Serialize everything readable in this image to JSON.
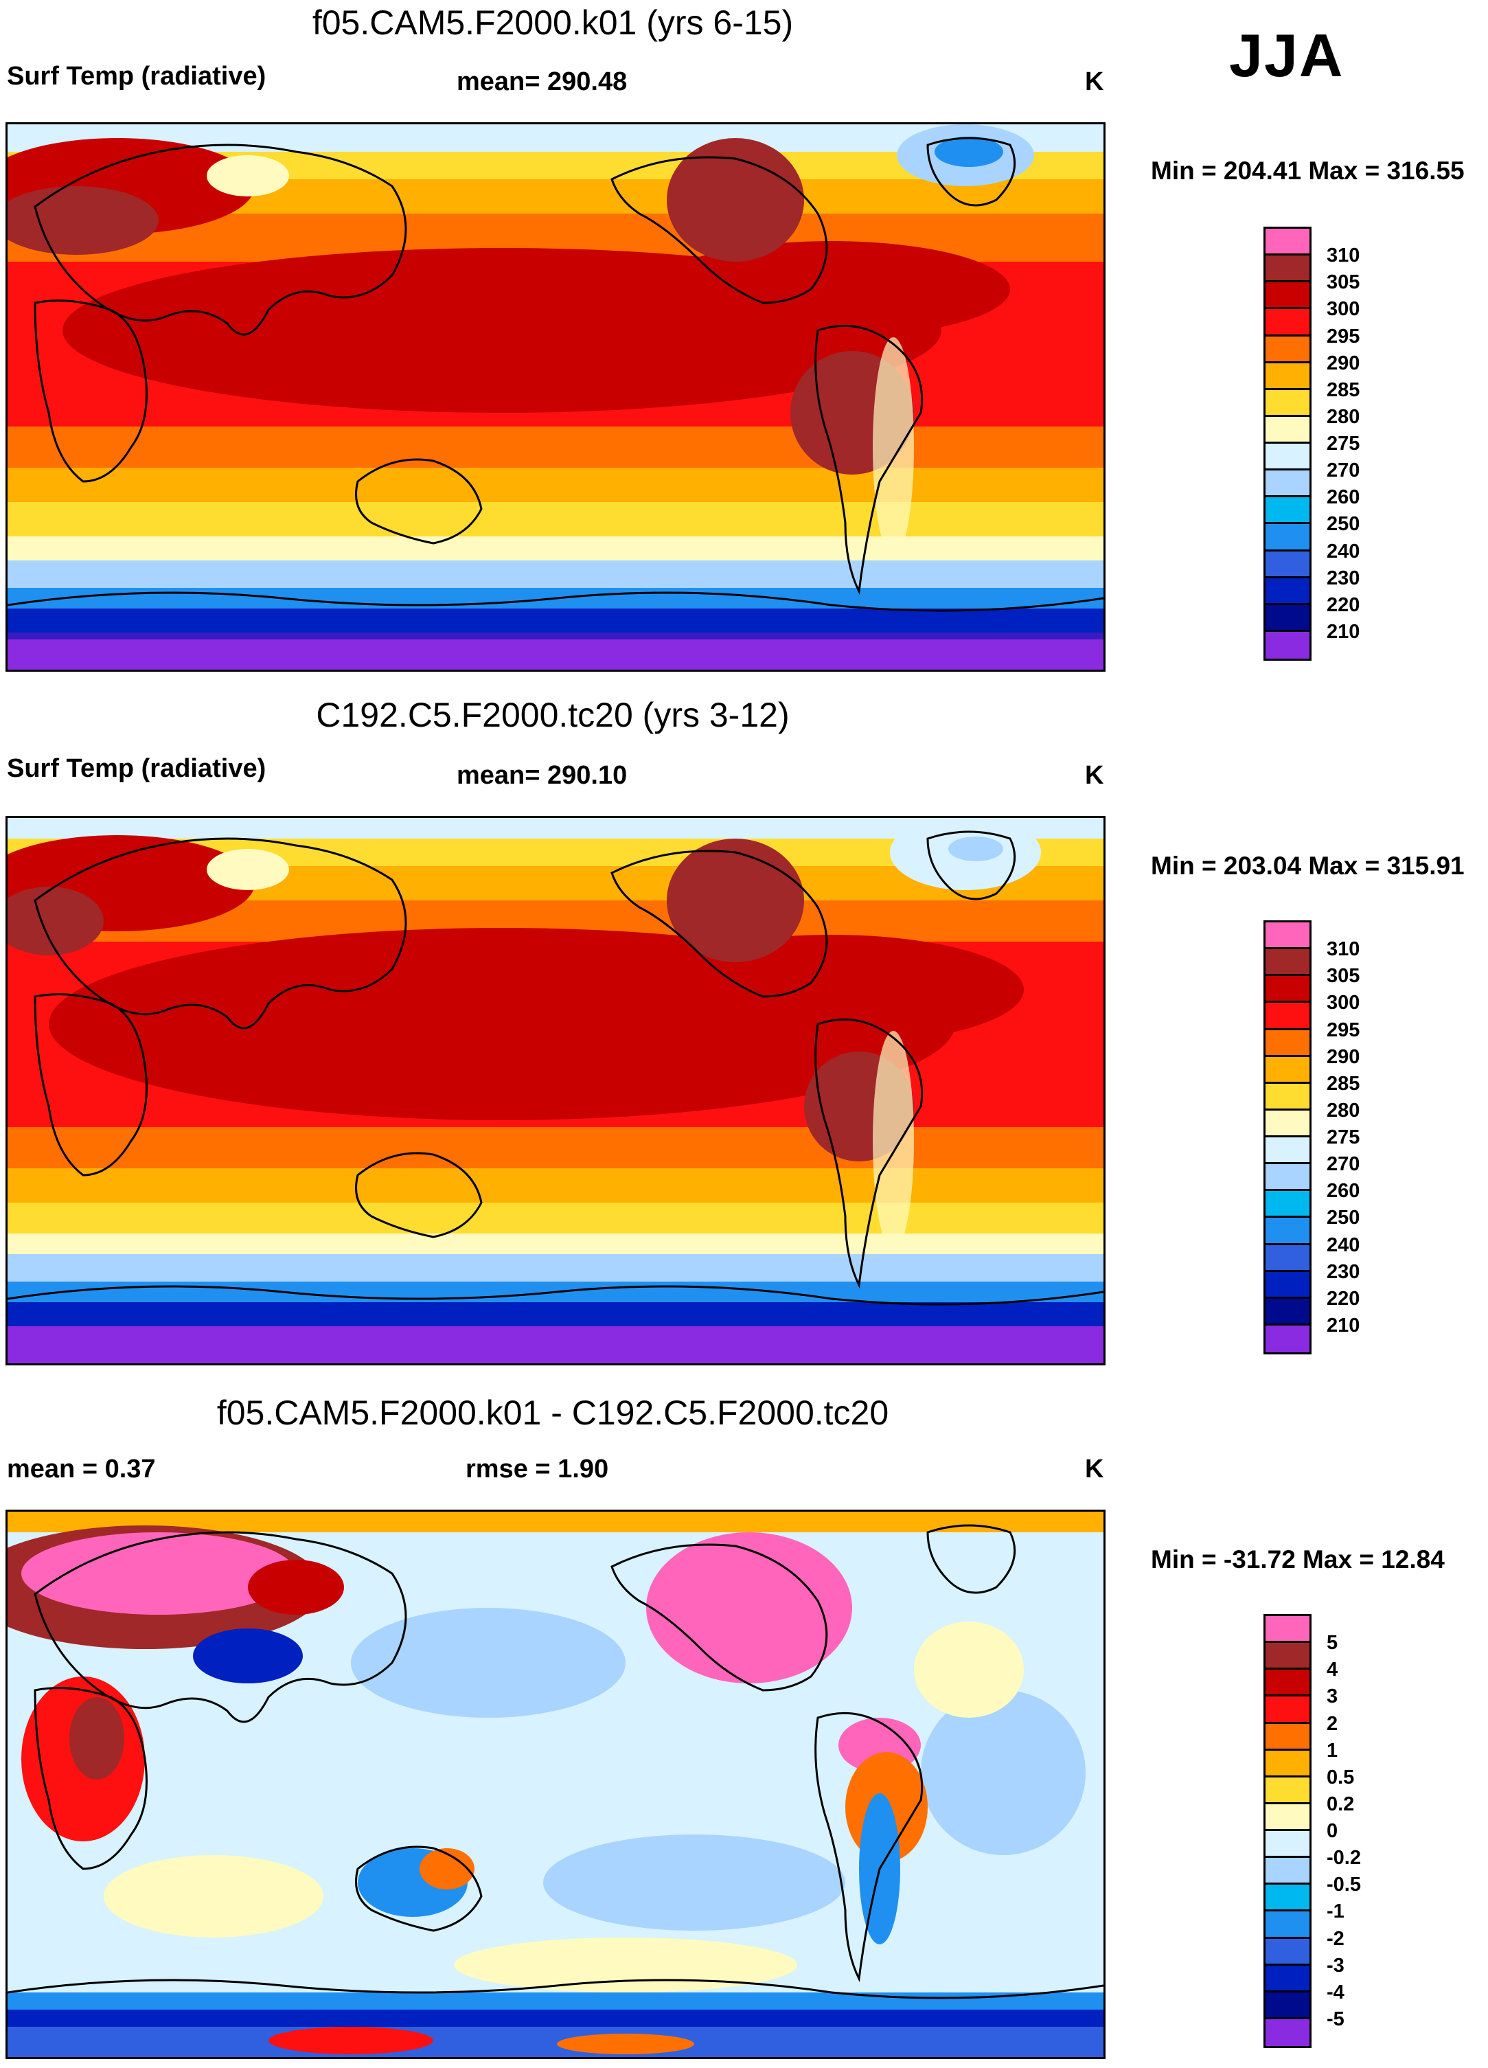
{
  "season": "JJA",
  "panels": [
    {
      "title": "f05.CAM5.F2000.k01 (yrs 6-15)",
      "variable": "Surf Temp (radiative)",
      "mean": "mean= 290.48",
      "units": "K",
      "minmax": "Min = 204.41 Max = 316.55",
      "colorbar": {
        "colors": [
          "#ff66bb",
          "#a02828",
          "#c80000",
          "#ff1010",
          "#ff7000",
          "#ffb000",
          "#ffdc30",
          "#fffbc0",
          "#d8f2ff",
          "#a8d4ff",
          "#00b8f0",
          "#2090f0",
          "#3060e0",
          "#0020c0",
          "#000a8c",
          "#8a2be2"
        ],
        "labels": [
          "310",
          "305",
          "300",
          "295",
          "290",
          "285",
          "280",
          "275",
          "270",
          "260",
          "250",
          "240",
          "230",
          "220",
          "210"
        ]
      }
    },
    {
      "title": "C192.C5.F2000.tc20 (yrs 3-12)",
      "variable": "Surf Temp (radiative)",
      "mean": "mean= 290.10",
      "units": "K",
      "minmax": "Min = 203.04 Max = 315.91",
      "colorbar": {
        "colors": [
          "#ff66bb",
          "#a02828",
          "#c80000",
          "#ff1010",
          "#ff7000",
          "#ffb000",
          "#ffdc30",
          "#fffbc0",
          "#d8f2ff",
          "#a8d4ff",
          "#00b8f0",
          "#2090f0",
          "#3060e0",
          "#0020c0",
          "#000a8c",
          "#8a2be2"
        ],
        "labels": [
          "310",
          "305",
          "300",
          "295",
          "290",
          "285",
          "280",
          "275",
          "270",
          "260",
          "250",
          "240",
          "230",
          "220",
          "210"
        ]
      }
    },
    {
      "title": "f05.CAM5.F2000.k01 - C192.C5.F2000.tc20",
      "variable": "mean =   0.37",
      "mean": "rmse =   1.90",
      "units": "K",
      "minmax": "Min = -31.72 Max =  12.84",
      "colorbar": {
        "colors": [
          "#ff66bb",
          "#a02828",
          "#c80000",
          "#ff1010",
          "#ff7000",
          "#ffb000",
          "#ffdc30",
          "#fffbc0",
          "#d8f2ff",
          "#a8d4ff",
          "#00b8f0",
          "#2090f0",
          "#3060e0",
          "#0020c0",
          "#000a8c",
          "#8a2be2"
        ],
        "labels": [
          "5",
          "4",
          "3",
          "2",
          "1",
          "0.5",
          "0.2",
          "0",
          "-0.2",
          "-0.5",
          "-1",
          "-2",
          "-3",
          "-4",
          "-5"
        ]
      }
    }
  ]
}
